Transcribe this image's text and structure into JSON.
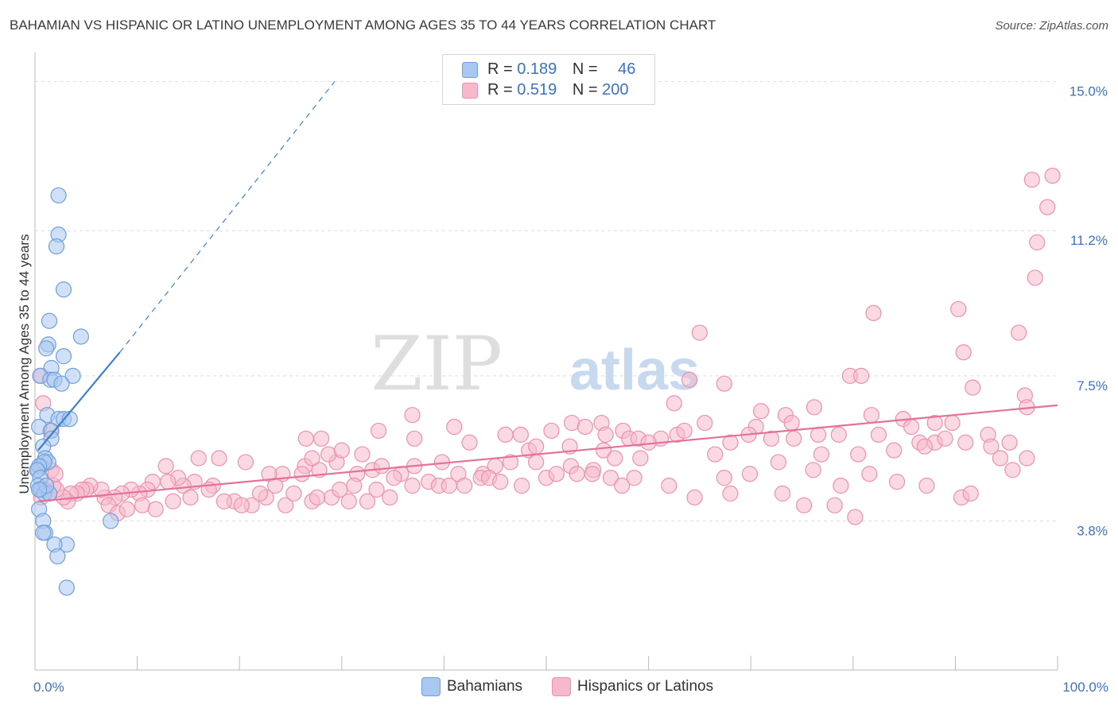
{
  "title": "BAHAMIAN VS HISPANIC OR LATINO UNEMPLOYMENT AMONG AGES 35 TO 44 YEARS CORRELATION CHART",
  "source": "Source: ZipAtlas.com",
  "watermark": {
    "zip": "ZIP",
    "atlas": "atlas"
  },
  "colors": {
    "blue_fill": "#a9c8f0",
    "blue_stroke": "#6f9fdc",
    "blue_line": "#3f7fd0",
    "pink_fill": "#f6b9cc",
    "pink_stroke": "#ec91ae",
    "pink_line": "#e2729a",
    "axis_label": "#3a72c4",
    "grid": "#dddddd"
  },
  "legend_top": {
    "rows": [
      {
        "r_label": "R = ",
        "r_value": "0.189",
        "n_label": "N = ",
        "n_value": "46",
        "color": "#a9c8f0",
        "stroke": "#6f9fdc"
      },
      {
        "r_label": "R = ",
        "r_value": "0.519",
        "n_label": "N = ",
        "n_value": "200",
        "color": "#f6b9cc",
        "stroke": "#ec91ae"
      }
    ]
  },
  "legend_bottom": [
    {
      "label": "Bahamians",
      "color": "#a9c8f0",
      "stroke": "#6f9fdc"
    },
    {
      "label": "Hispanics or Latinos",
      "color": "#f6b9cc",
      "stroke": "#ec91ae"
    }
  ],
  "chart_data": {
    "type": "scatter",
    "title": "BAHAMIAN VS HISPANIC OR LATINO UNEMPLOYMENT AMONG AGES 35 TO 44 YEARS CORRELATION CHART",
    "xlabel": "",
    "ylabel": "Unemployment Among Ages 35 to 44 years",
    "xlim": [
      0,
      100
    ],
    "ylim": [
      0,
      15.5
    ],
    "x_tick_labels": [
      {
        "value": 0,
        "label": "0.0%"
      },
      {
        "value": 100,
        "label": "100.0%"
      }
    ],
    "y_tick_labels": [
      {
        "value": 3.8,
        "label": "3.8%"
      },
      {
        "value": 7.5,
        "label": "7.5%"
      },
      {
        "value": 11.2,
        "label": "11.2%"
      },
      {
        "value": 15.0,
        "label": "15.0%"
      }
    ],
    "grid": true,
    "legend_position": "bottom",
    "series": [
      {
        "name": "Bahamians",
        "color": "#a9c8f0",
        "trend": {
          "x": [
            0.3,
            8.3
          ],
          "y": [
            5.6,
            8.1
          ],
          "dashed_to": [
            29.3,
            15.0
          ]
        },
        "points": [
          [
            2.3,
            12.1
          ],
          [
            2.3,
            11.1
          ],
          [
            2.1,
            10.8
          ],
          [
            2.8,
            9.7
          ],
          [
            1.4,
            8.9
          ],
          [
            4.5,
            8.5
          ],
          [
            1.3,
            8.3
          ],
          [
            1.1,
            8.2
          ],
          [
            2.8,
            8.0
          ],
          [
            1.6,
            7.7
          ],
          [
            0.5,
            7.5
          ],
          [
            3.7,
            7.5
          ],
          [
            1.5,
            7.4
          ],
          [
            1.9,
            7.4
          ],
          [
            2.6,
            7.3
          ],
          [
            1.2,
            6.5
          ],
          [
            2.3,
            6.4
          ],
          [
            2.8,
            6.4
          ],
          [
            3.4,
            6.4
          ],
          [
            0.4,
            6.2
          ],
          [
            1.6,
            6.1
          ],
          [
            1.6,
            5.9
          ],
          [
            0.8,
            5.7
          ],
          [
            1.0,
            5.4
          ],
          [
            0.6,
            5.2
          ],
          [
            0.3,
            5.1
          ],
          [
            1.3,
            5.3
          ],
          [
            0.9,
            5.3
          ],
          [
            0.4,
            5.2
          ],
          [
            0.2,
            5.1
          ],
          [
            0.5,
            4.9
          ],
          [
            0.3,
            4.7
          ],
          [
            0.6,
            4.6
          ],
          [
            0.9,
            4.5
          ],
          [
            1.4,
            4.5
          ],
          [
            1.1,
            4.7
          ],
          [
            0.4,
            4.6
          ],
          [
            0.4,
            4.1
          ],
          [
            7.4,
            3.8
          ],
          [
            0.8,
            3.8
          ],
          [
            1.0,
            3.5
          ],
          [
            0.8,
            3.5
          ],
          [
            3.1,
            3.2
          ],
          [
            1.9,
            3.2
          ],
          [
            2.2,
            2.9
          ],
          [
            3.1,
            2.1
          ]
        ]
      },
      {
        "name": "Hispanics or Latinos",
        "color": "#f6b9cc",
        "trend": {
          "x": [
            0.3,
            100
          ],
          "y": [
            4.3,
            6.75
          ]
        },
        "points": [
          [
            99.5,
            12.6
          ],
          [
            97.5,
            12.5
          ],
          [
            99.0,
            11.8
          ],
          [
            98.0,
            10.9
          ],
          [
            97.8,
            10.0
          ],
          [
            82.0,
            9.1
          ],
          [
            90.3,
            9.2
          ],
          [
            96.2,
            8.6
          ],
          [
            90.8,
            8.1
          ],
          [
            65.0,
            8.6
          ],
          [
            64.0,
            7.4
          ],
          [
            67.4,
            7.3
          ],
          [
            79.7,
            7.5
          ],
          [
            80.8,
            7.5
          ],
          [
            91.7,
            7.2
          ],
          [
            96.8,
            7.0
          ],
          [
            97.0,
            6.7
          ],
          [
            62.5,
            6.8
          ],
          [
            76.2,
            6.7
          ],
          [
            71.0,
            6.6
          ],
          [
            65.5,
            6.3
          ],
          [
            70.5,
            6.2
          ],
          [
            73.4,
            6.5
          ],
          [
            74.0,
            6.3
          ],
          [
            81.8,
            6.5
          ],
          [
            88.0,
            6.3
          ],
          [
            89.7,
            6.3
          ],
          [
            84.9,
            6.4
          ],
          [
            85.7,
            6.2
          ],
          [
            82.5,
            6.0
          ],
          [
            78.6,
            6.0
          ],
          [
            76.6,
            6.0
          ],
          [
            74.2,
            5.9
          ],
          [
            72.0,
            5.9
          ],
          [
            69.8,
            6.0
          ],
          [
            68.0,
            5.8
          ],
          [
            66.5,
            5.5
          ],
          [
            62.8,
            6.0
          ],
          [
            63.5,
            6.1
          ],
          [
            61.2,
            5.9
          ],
          [
            86.5,
            5.8
          ],
          [
            88.0,
            5.8
          ],
          [
            89.0,
            5.9
          ],
          [
            91.0,
            5.8
          ],
          [
            93.2,
            6.0
          ],
          [
            93.5,
            5.7
          ],
          [
            95.3,
            5.8
          ],
          [
            94.4,
            5.4
          ],
          [
            95.6,
            5.1
          ],
          [
            97.0,
            5.4
          ],
          [
            87.0,
            5.7
          ],
          [
            84.0,
            5.6
          ],
          [
            80.5,
            5.5
          ],
          [
            76.9,
            5.5
          ],
          [
            72.7,
            5.3
          ],
          [
            76.1,
            5.1
          ],
          [
            69.9,
            5.0
          ],
          [
            67.4,
            4.9
          ],
          [
            68.0,
            4.5
          ],
          [
            62.0,
            4.7
          ],
          [
            64.5,
            4.4
          ],
          [
            73.1,
            4.5
          ],
          [
            75.2,
            4.2
          ],
          [
            78.2,
            4.2
          ],
          [
            78.8,
            4.7
          ],
          [
            81.6,
            5.0
          ],
          [
            84.3,
            4.8
          ],
          [
            87.2,
            4.7
          ],
          [
            90.6,
            4.4
          ],
          [
            91.5,
            4.5
          ],
          [
            80.2,
            3.9
          ],
          [
            52.5,
            6.3
          ],
          [
            55.4,
            6.3
          ],
          [
            53.8,
            6.2
          ],
          [
            50.5,
            6.1
          ],
          [
            55.8,
            6.0
          ],
          [
            57.5,
            6.1
          ],
          [
            58.1,
            5.9
          ],
          [
            59.0,
            5.9
          ],
          [
            47.5,
            6.0
          ],
          [
            46.0,
            6.0
          ],
          [
            41.0,
            6.2
          ],
          [
            37.1,
            5.9
          ],
          [
            42.5,
            5.8
          ],
          [
            48.3,
            5.6
          ],
          [
            49.0,
            5.7
          ],
          [
            52.3,
            5.7
          ],
          [
            55.6,
            5.6
          ],
          [
            60.0,
            5.8
          ],
          [
            56.7,
            5.4
          ],
          [
            59.2,
            5.4
          ],
          [
            54.6,
            5.1
          ],
          [
            52.4,
            5.2
          ],
          [
            49.0,
            5.3
          ],
          [
            46.5,
            5.3
          ],
          [
            45.0,
            5.2
          ],
          [
            43.8,
            5.0
          ],
          [
            41.4,
            5.0
          ],
          [
            39.8,
            5.3
          ],
          [
            37.1,
            5.2
          ],
          [
            35.8,
            5.0
          ],
          [
            33.0,
            5.1
          ],
          [
            31.5,
            5.0
          ],
          [
            29.5,
            5.3
          ],
          [
            27.8,
            5.1
          ],
          [
            26.4,
            5.2
          ],
          [
            26.1,
            5.0
          ],
          [
            24.2,
            5.0
          ],
          [
            22.9,
            5.0
          ],
          [
            20.6,
            5.3
          ],
          [
            18.0,
            5.4
          ],
          [
            16.0,
            5.4
          ],
          [
            12.8,
            5.2
          ],
          [
            36.9,
            6.5
          ],
          [
            33.6,
            6.1
          ],
          [
            28.0,
            5.9
          ],
          [
            26.5,
            5.9
          ],
          [
            27.1,
            5.4
          ],
          [
            28.7,
            5.5
          ],
          [
            30.0,
            5.6
          ],
          [
            32.0,
            5.5
          ],
          [
            33.9,
            5.2
          ],
          [
            35.1,
            4.9
          ],
          [
            36.9,
            4.7
          ],
          [
            38.5,
            4.8
          ],
          [
            39.5,
            4.7
          ],
          [
            40.5,
            4.7
          ],
          [
            43.6,
            4.9
          ],
          [
            44.4,
            4.9
          ],
          [
            45.5,
            4.8
          ],
          [
            47.6,
            4.7
          ],
          [
            50.0,
            4.9
          ],
          [
            51.0,
            5.0
          ],
          [
            53.0,
            5.0
          ],
          [
            54.5,
            5.0
          ],
          [
            56.3,
            4.9
          ],
          [
            57.4,
            4.7
          ],
          [
            58.6,
            4.9
          ],
          [
            42.0,
            4.7
          ],
          [
            32.5,
            4.3
          ],
          [
            30.7,
            4.3
          ],
          [
            29.0,
            4.4
          ],
          [
            27.1,
            4.3
          ],
          [
            24.5,
            4.2
          ],
          [
            22.6,
            4.4
          ],
          [
            21.2,
            4.2
          ],
          [
            19.5,
            4.3
          ],
          [
            17.4,
            4.7
          ],
          [
            15.6,
            4.8
          ],
          [
            14.5,
            4.7
          ],
          [
            14.0,
            4.9
          ],
          [
            13.0,
            4.8
          ],
          [
            11.5,
            4.8
          ],
          [
            11.0,
            4.6
          ],
          [
            10.2,
            4.5
          ],
          [
            9.4,
            4.6
          ],
          [
            8.5,
            4.5
          ],
          [
            7.8,
            4.4
          ],
          [
            6.8,
            4.4
          ],
          [
            6.5,
            4.6
          ],
          [
            5.4,
            4.7
          ],
          [
            5.0,
            4.6
          ],
          [
            4.6,
            4.6
          ],
          [
            4.1,
            4.5
          ],
          [
            3.5,
            4.5
          ],
          [
            3.2,
            4.3
          ],
          [
            2.8,
            4.4
          ],
          [
            2.1,
            4.6
          ],
          [
            1.8,
            4.7
          ],
          [
            1.4,
            4.5
          ],
          [
            0.9,
            4.6
          ],
          [
            0.6,
            4.4
          ],
          [
            1.6,
            5.1
          ],
          [
            2.0,
            5.0
          ],
          [
            0.8,
            6.8
          ],
          [
            1.5,
            6.1
          ],
          [
            0.6,
            7.5
          ],
          [
            7.2,
            4.2
          ],
          [
            8.1,
            4.0
          ],
          [
            9.0,
            4.1
          ],
          [
            10.5,
            4.2
          ],
          [
            11.8,
            4.1
          ],
          [
            13.5,
            4.3
          ],
          [
            15.2,
            4.4
          ],
          [
            17.0,
            4.6
          ],
          [
            18.5,
            4.3
          ],
          [
            20.2,
            4.2
          ],
          [
            22.0,
            4.5
          ],
          [
            23.5,
            4.7
          ],
          [
            25.3,
            4.5
          ],
          [
            27.6,
            4.4
          ],
          [
            29.8,
            4.6
          ],
          [
            31.2,
            4.7
          ],
          [
            33.4,
            4.6
          ],
          [
            34.7,
            4.4
          ]
        ]
      }
    ]
  }
}
